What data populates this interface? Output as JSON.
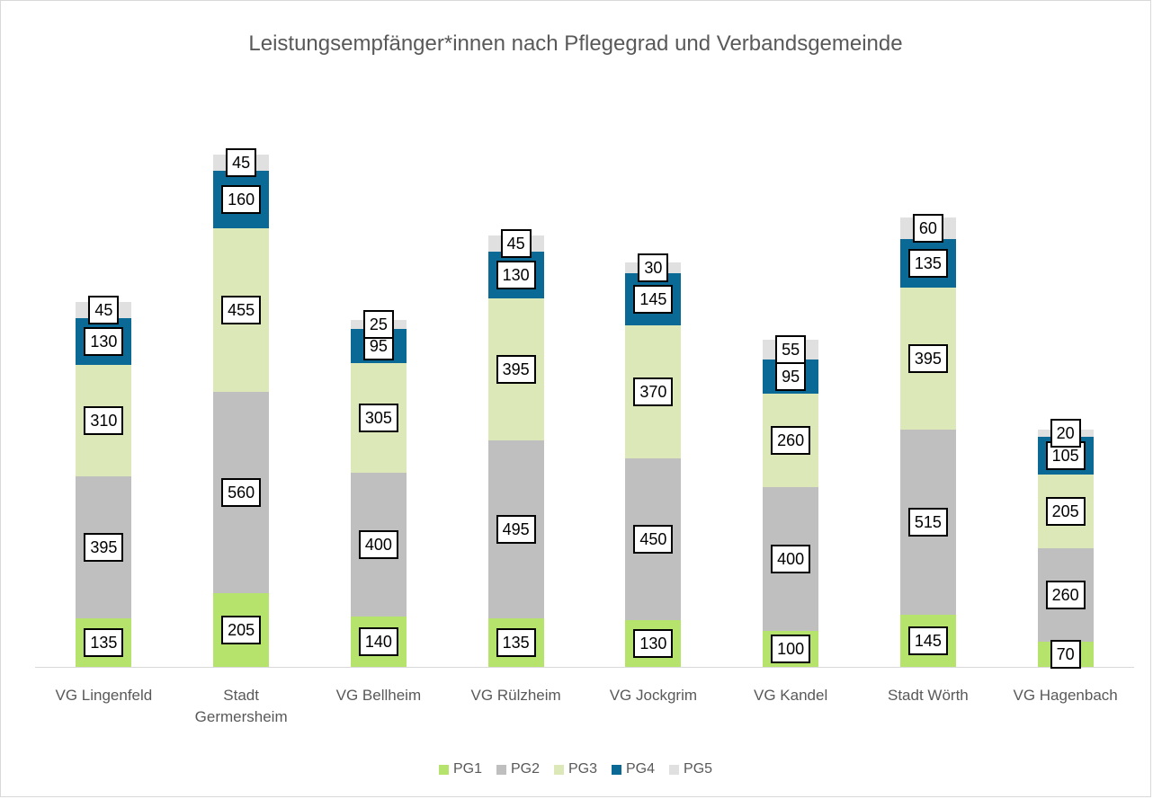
{
  "chart_data": {
    "type": "stacked_bar",
    "title": "Leistungsempfänger*innen nach Pflegegrad und Verbandsgemeinde",
    "categories": [
      "VG Lingenfeld",
      "Stadt Germersheim",
      "VG Bellheim",
      "VG Rülzheim",
      "VG Jockgrim",
      "VG Kandel",
      "Stadt Wörth",
      "VG Hagenbach"
    ],
    "series": [
      {
        "name": "PG1",
        "color": "#b5e36b",
        "values": [
          135,
          205,
          140,
          135,
          130,
          100,
          145,
          70
        ]
      },
      {
        "name": "PG2",
        "color": "#bfbfbf",
        "values": [
          395,
          560,
          400,
          495,
          450,
          400,
          515,
          260
        ]
      },
      {
        "name": "PG3",
        "color": "#dde8b9",
        "values": [
          310,
          455,
          305,
          395,
          370,
          260,
          395,
          205
        ]
      },
      {
        "name": "PG4",
        "color": "#0b6a95",
        "values": [
          130,
          160,
          95,
          130,
          145,
          95,
          135,
          105
        ]
      },
      {
        "name": "PG5",
        "color": "#e0e0e0",
        "values": [
          45,
          45,
          25,
          45,
          30,
          55,
          60,
          20
        ]
      }
    ],
    "legend": "bottom"
  }
}
